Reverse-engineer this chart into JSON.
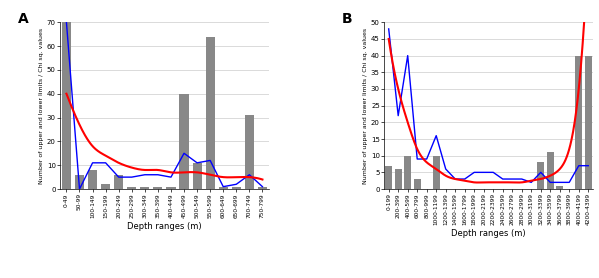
{
  "panel_A": {
    "categories": [
      "0-49",
      "50-99",
      "100-149",
      "150-199",
      "200-249",
      "250-299",
      "300-349",
      "350-399",
      "400-449",
      "450-499",
      "500-549",
      "550-599",
      "600-649",
      "650-699",
      "700-749",
      "750-799"
    ],
    "bars": [
      70,
      6,
      8,
      2,
      6,
      1,
      1,
      1,
      1,
      40,
      11,
      64,
      1,
      1,
      31,
      1
    ],
    "blue_line": [
      70,
      0,
      11,
      11,
      5,
      5,
      6,
      6,
      5,
      15,
      11,
      12,
      1,
      2,
      6,
      1
    ],
    "red_curve_x": [
      0,
      1,
      2,
      3,
      4,
      5,
      6,
      7,
      8,
      9,
      10,
      11,
      12,
      13,
      14,
      15
    ],
    "red_curve_y": [
      40,
      27,
      18,
      14,
      11,
      9,
      8,
      8,
      7,
      7,
      7,
      6,
      5,
      5,
      5,
      4
    ],
    "ylabel": "Number of upper and lower limits / Chi sq. values",
    "xlabel": "Depth ranges (m)",
    "ylim": [
      0,
      70
    ],
    "yticks": [
      0,
      10,
      20,
      30,
      40,
      50,
      60,
      70
    ],
    "label": "A"
  },
  "panel_B": {
    "categories": [
      "0-199",
      "200-399",
      "400-599",
      "600-799",
      "800-999",
      "1000-1199",
      "1200-1399",
      "1400-1599",
      "1600-1799",
      "1800-1999",
      "2000-2199",
      "2200-2399",
      "2400-2599",
      "2600-2799",
      "2800-2999",
      "3000-3199",
      "3200-3399",
      "3400-3599",
      "3600-3799",
      "3800-3999",
      "4000-4199",
      "4200-4399"
    ],
    "bars": [
      7,
      6,
      10,
      3,
      0,
      10,
      0,
      0,
      0,
      0,
      0,
      0,
      0,
      0,
      0,
      0,
      8,
      11,
      1,
      0,
      40,
      40
    ],
    "blue_line": [
      48,
      22,
      40,
      9,
      9,
      16,
      6,
      3,
      3,
      5,
      5,
      5,
      3,
      3,
      3,
      2,
      5,
      2,
      2,
      2,
      7,
      7
    ],
    "red_curve_x": [
      0,
      1,
      2,
      3,
      4,
      5,
      6,
      7,
      8,
      9,
      10,
      11,
      12,
      13,
      14,
      15,
      16,
      17,
      18,
      19,
      20,
      21
    ],
    "red_curve_y": [
      45,
      30,
      20,
      12,
      8,
      6,
      4,
      3,
      2.5,
      2,
      2,
      2,
      2,
      2,
      2,
      2.5,
      3,
      4,
      6,
      12,
      30,
      72
    ],
    "ylabel": "Number of upper and lower limits / Chi sq. values",
    "xlabel": "Depth ranges (m)",
    "ylim": [
      0,
      50
    ],
    "yticks": [
      0,
      5,
      10,
      15,
      20,
      25,
      30,
      35,
      40,
      45,
      50
    ],
    "label": "B"
  },
  "bar_color": "#888888",
  "blue_color": "#0000ff",
  "red_color": "#ff0000",
  "background_color": "#ffffff",
  "grid_color": "#cccccc"
}
